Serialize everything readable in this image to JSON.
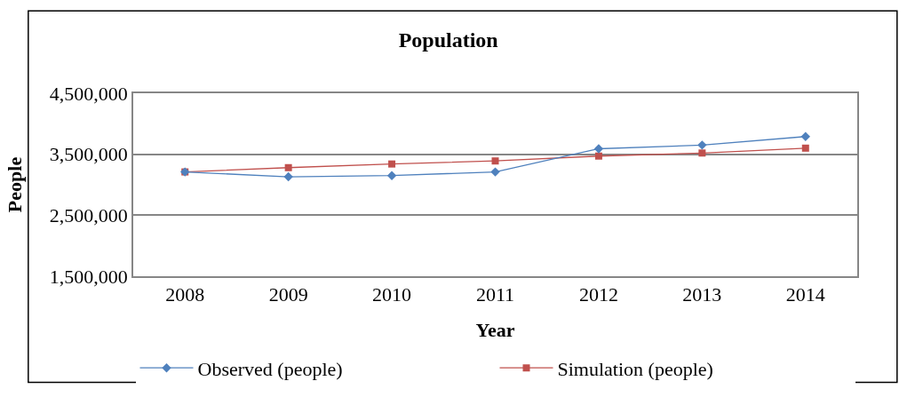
{
  "chart_data": {
    "type": "line",
    "title": "Population",
    "xlabel": "Year",
    "ylabel": "People",
    "categories": [
      "2008",
      "2009",
      "2010",
      "2011",
      "2012",
      "2013",
      "2014"
    ],
    "series": [
      {
        "name": "Observed (people)",
        "color": "#4f81bd",
        "marker": "diamond",
        "values": [
          3210000,
          3130000,
          3150000,
          3210000,
          3590000,
          3650000,
          3790000
        ]
      },
      {
        "name": "Simulation (people)",
        "color": "#c0504d",
        "marker": "square",
        "values": [
          3210000,
          3280000,
          3340000,
          3390000,
          3470000,
          3520000,
          3600000
        ]
      }
    ],
    "ylim": [
      1500000,
      4500000
    ],
    "yticks": [
      {
        "value": 1500000,
        "label": "1,500,000"
      },
      {
        "value": 2500000,
        "label": "2,500,000"
      },
      {
        "value": 3500000,
        "label": "3,500,000"
      },
      {
        "value": 4500000,
        "label": "4,500,000"
      }
    ],
    "grid": "y",
    "legend": "bottom",
    "line_style": "solid"
  }
}
